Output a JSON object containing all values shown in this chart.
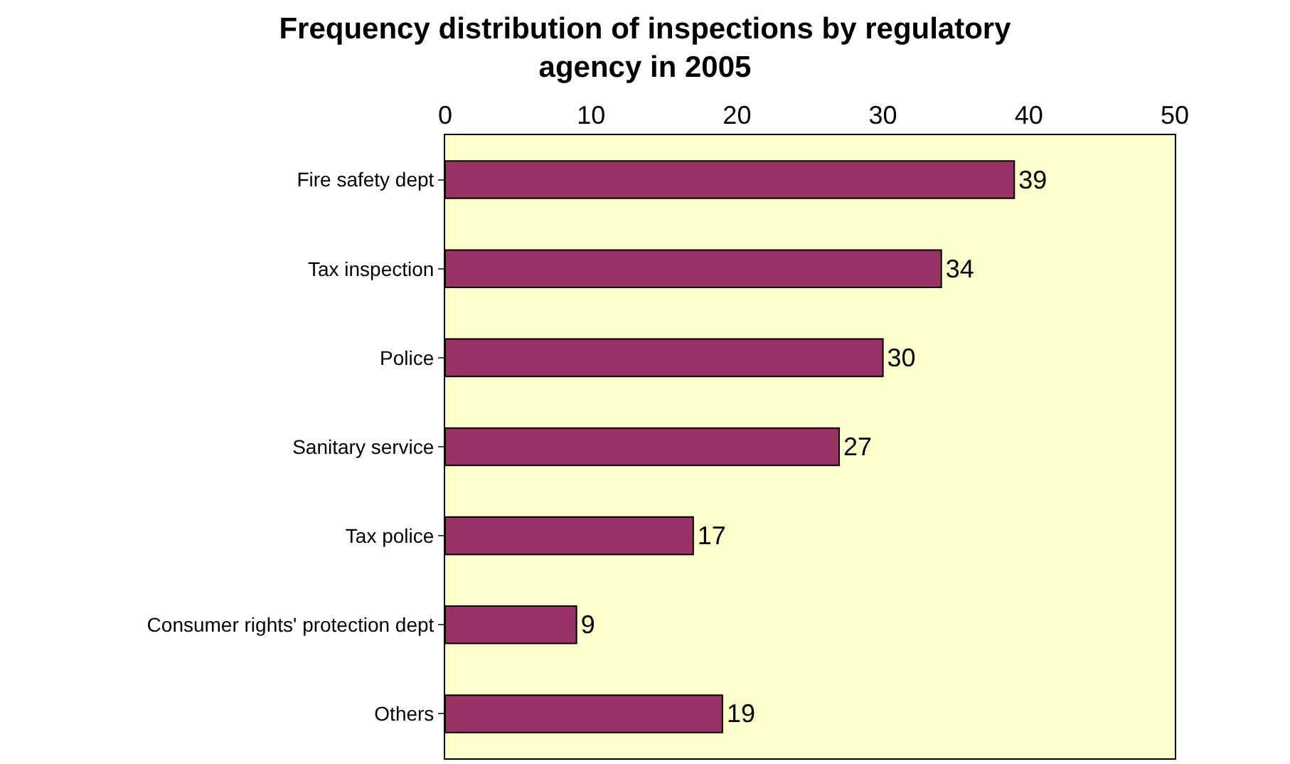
{
  "chart_data": {
    "type": "bar",
    "orientation": "horizontal",
    "title": "Frequency distribution of inspections by regulatory agency in 2005",
    "categories": [
      "Fire safety dept",
      "Tax inspection",
      "Police",
      "Sanitary service",
      "Tax police",
      "Consumer rights' protection dept",
      "Others"
    ],
    "values": [
      39,
      34,
      30,
      27,
      17,
      9,
      19
    ],
    "color": "#993366",
    "xlim": [
      0,
      50
    ],
    "xticks": [
      0,
      10,
      20,
      30,
      40,
      50
    ],
    "data_labels": true
  }
}
